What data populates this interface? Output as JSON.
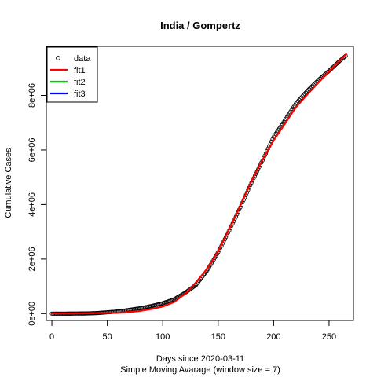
{
  "chart_data": {
    "type": "line",
    "title": "India / Gompertz",
    "xlabel": "Days since 2020-03-11",
    "xlabel2": "Simple Moving Avarage (window size = 7)",
    "ylabel": "Cumulative Cases",
    "xlim": [
      -5,
      272
    ],
    "ylim": [
      -250000,
      9800000
    ],
    "xticks": [
      0,
      50,
      100,
      150,
      200,
      250
    ],
    "xtick_labels": [
      "0",
      "50",
      "100",
      "150",
      "200",
      "250"
    ],
    "yticks": [
      0,
      2000000,
      4000000,
      6000000,
      8000000
    ],
    "ytick_labels": [
      "0e+00",
      "2e+06",
      "4e+06",
      "6e+06",
      "8e+06"
    ],
    "grid": false,
    "legend_position": "top-left",
    "legend": [
      {
        "label": "data",
        "kind": "point",
        "color": "#000000"
      },
      {
        "label": "fit1",
        "kind": "line",
        "color": "#ff0000"
      },
      {
        "label": "fit2",
        "kind": "line",
        "color": "#00cd00"
      },
      {
        "label": "fit3",
        "kind": "line",
        "color": "#0000ff"
      }
    ],
    "data_points": {
      "x": [
        0,
        10,
        20,
        30,
        40,
        50,
        60,
        70,
        80,
        90,
        100,
        110,
        120,
        130,
        140,
        150,
        160,
        170,
        180,
        190,
        200,
        210,
        220,
        230,
        240,
        250,
        260,
        265
      ],
      "y": [
        0,
        0,
        3000,
        6000,
        20000,
        50000,
        80000,
        140000,
        200000,
        280000,
        380000,
        520000,
        760000,
        1050000,
        1580000,
        2250000,
        3050000,
        3900000,
        4800000,
        5620000,
        6480000,
        7080000,
        7700000,
        8150000,
        8550000,
        8900000,
        9280000,
        9450000
      ]
    },
    "series": [
      {
        "name": "fit1",
        "color": "#ff0000",
        "x": [
          0,
          20,
          40,
          60,
          70,
          80,
          90,
          100,
          110,
          120,
          130,
          140,
          150,
          160,
          170,
          180,
          190,
          200,
          210,
          220,
          230,
          240,
          250,
          260,
          266
        ],
        "y": [
          10000,
          10000,
          20000,
          30000,
          60000,
          100000,
          170000,
          260000,
          420000,
          720000,
          1150000,
          1640000,
          2290000,
          3100000,
          3960000,
          4860000,
          5640000,
          6350000,
          6950000,
          7560000,
          8020000,
          8450000,
          8880000,
          9300000,
          9530000
        ]
      }
    ]
  }
}
